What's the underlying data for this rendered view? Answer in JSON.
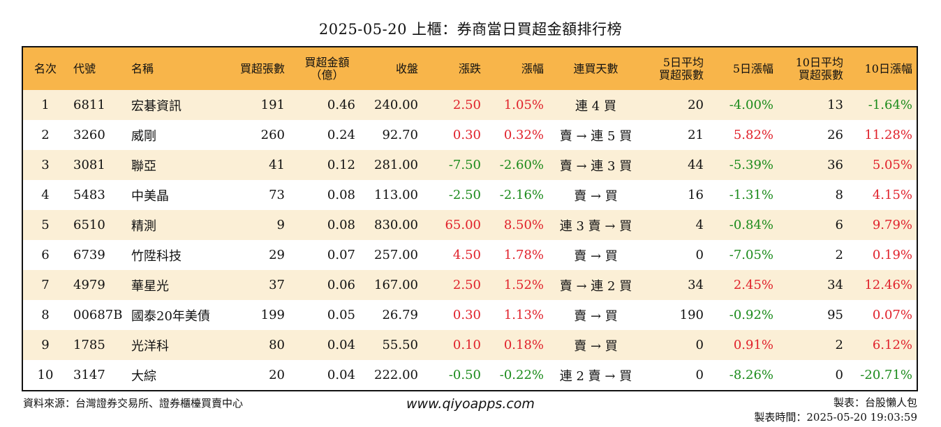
{
  "title": "2025-05-20 上櫃：券商當日買超金額排行榜",
  "headers": {
    "rank": "名次",
    "code": "代號",
    "name": "名稱",
    "buy_lots": "買超張數",
    "buy_amount_l1": "買超金額",
    "buy_amount_l2": "（億）",
    "close": "收盤",
    "change": "漲跌",
    "change_pct": "漲幅",
    "streak": "連買天數",
    "avg5_l1": "5日平均",
    "avg5_l2": "買超張數",
    "pct5": "5日漲幅",
    "avg10_l1": "10日平均",
    "avg10_l2": "買超張數",
    "pct10": "10日漲幅"
  },
  "rows": [
    {
      "rank": "1",
      "code": "6811",
      "name": "宏碁資訊",
      "lots": "191",
      "amount": "0.46",
      "close": "240.00",
      "change": "2.50",
      "change_dir": "pos",
      "pct": "1.05%",
      "streak": "連 4 買",
      "avg5": "20",
      "pct5": "-4.00%",
      "pct5_dir": "neg",
      "avg10": "13",
      "pct10": "-1.64%",
      "pct10_dir": "neg"
    },
    {
      "rank": "2",
      "code": "3260",
      "name": "威剛",
      "lots": "260",
      "amount": "0.24",
      "close": "92.70",
      "change": "0.30",
      "change_dir": "pos",
      "pct": "0.32%",
      "streak": "賣 → 連 5 買",
      "avg5": "21",
      "pct5": "5.82%",
      "pct5_dir": "pos",
      "avg10": "26",
      "pct10": "11.28%",
      "pct10_dir": "pos"
    },
    {
      "rank": "3",
      "code": "3081",
      "name": "聯亞",
      "lots": "41",
      "amount": "0.12",
      "close": "281.00",
      "change": "-7.50",
      "change_dir": "neg",
      "pct": "-2.60%",
      "streak": "賣 → 連 3 買",
      "avg5": "44",
      "pct5": "-5.39%",
      "pct5_dir": "neg",
      "avg10": "36",
      "pct10": "5.05%",
      "pct10_dir": "pos"
    },
    {
      "rank": "4",
      "code": "5483",
      "name": "中美晶",
      "lots": "73",
      "amount": "0.08",
      "close": "113.00",
      "change": "-2.50",
      "change_dir": "neg",
      "pct": "-2.16%",
      "streak": "賣 → 買",
      "avg5": "16",
      "pct5": "-1.31%",
      "pct5_dir": "neg",
      "avg10": "8",
      "pct10": "4.15%",
      "pct10_dir": "pos"
    },
    {
      "rank": "5",
      "code": "6510",
      "name": "精測",
      "lots": "9",
      "amount": "0.08",
      "close": "830.00",
      "change": "65.00",
      "change_dir": "pos",
      "pct": "8.50%",
      "streak": "連 3 賣 → 買",
      "avg5": "4",
      "pct5": "-0.84%",
      "pct5_dir": "neg",
      "avg10": "6",
      "pct10": "9.79%",
      "pct10_dir": "pos"
    },
    {
      "rank": "6",
      "code": "6739",
      "name": "竹陞科技",
      "lots": "29",
      "amount": "0.07",
      "close": "257.00",
      "change": "4.50",
      "change_dir": "pos",
      "pct": "1.78%",
      "streak": "賣 → 買",
      "avg5": "0",
      "pct5": "-7.05%",
      "pct5_dir": "neg",
      "avg10": "2",
      "pct10": "0.19%",
      "pct10_dir": "pos"
    },
    {
      "rank": "7",
      "code": "4979",
      "name": "華星光",
      "lots": "37",
      "amount": "0.06",
      "close": "167.00",
      "change": "2.50",
      "change_dir": "pos",
      "pct": "1.52%",
      "streak": "賣 → 連 2 買",
      "avg5": "34",
      "pct5": "2.45%",
      "pct5_dir": "pos",
      "avg10": "34",
      "pct10": "12.46%",
      "pct10_dir": "pos"
    },
    {
      "rank": "8",
      "code": "00687B",
      "name": "國泰20年美債",
      "lots": "199",
      "amount": "0.05",
      "close": "26.79",
      "change": "0.30",
      "change_dir": "pos",
      "pct": "1.13%",
      "streak": "賣 → 買",
      "avg5": "190",
      "pct5": "-0.92%",
      "pct5_dir": "neg",
      "avg10": "95",
      "pct10": "0.07%",
      "pct10_dir": "pos"
    },
    {
      "rank": "9",
      "code": "1785",
      "name": "光洋科",
      "lots": "80",
      "amount": "0.04",
      "close": "55.50",
      "change": "0.10",
      "change_dir": "pos",
      "pct": "0.18%",
      "streak": "賣 → 買",
      "avg5": "0",
      "pct5": "0.91%",
      "pct5_dir": "pos",
      "avg10": "2",
      "pct10": "6.12%",
      "pct10_dir": "pos"
    },
    {
      "rank": "10",
      "code": "3147",
      "name": "大綜",
      "lots": "20",
      "amount": "0.04",
      "close": "222.00",
      "change": "-0.50",
      "change_dir": "neg",
      "pct": "-0.22%",
      "streak": "連 2 賣 → 買",
      "avg5": "0",
      "pct5": "-8.26%",
      "pct5_dir": "neg",
      "avg10": "0",
      "pct10": "-20.71%",
      "pct10_dir": "neg"
    }
  ],
  "footer": {
    "source": "資料來源：台灣證券交易所、證券櫃檯買賣中心",
    "website": "www.qiyoapps.com",
    "maker": "製表：台股懶人包",
    "made_time": "製表時間：2025-05-20 19:03:59"
  },
  "colors": {
    "header_bg": "#f8b54a",
    "row_alt_bg": "#fbefd6",
    "up": "#e0202a",
    "down": "#1a8a1a"
  }
}
